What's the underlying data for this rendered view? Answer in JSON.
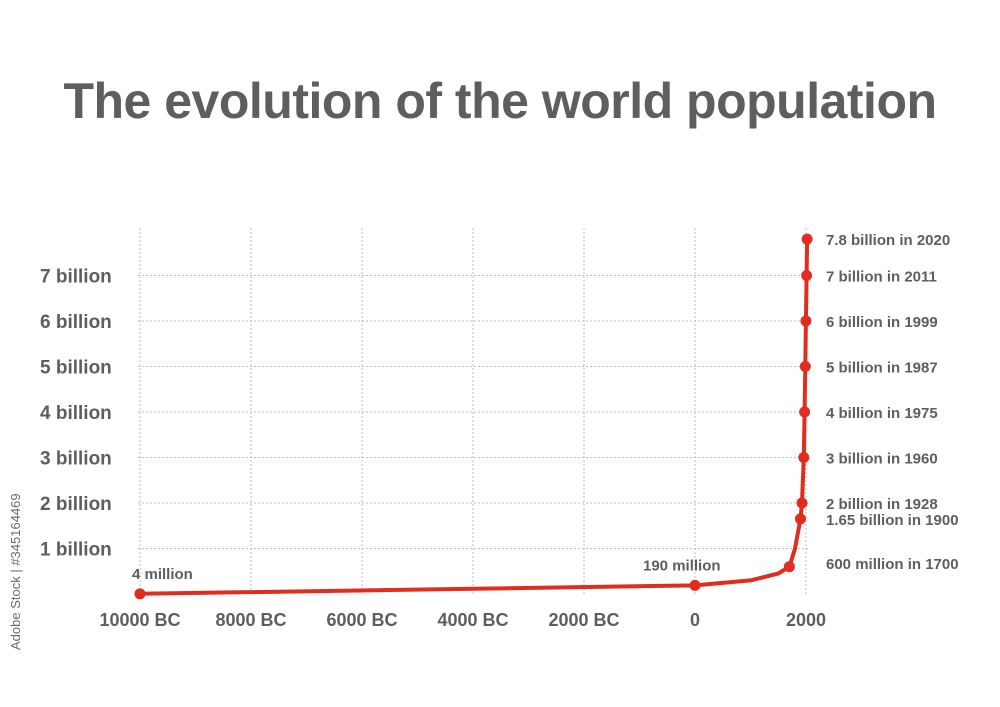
{
  "watermark": "Adobe Stock | #345164469",
  "colors": {
    "line": "#e02d1f",
    "text": "#5e5e5e",
    "grid": "#bdbdbd"
  },
  "chart_data": {
    "type": "line",
    "title": "The evolution of the world population",
    "xlabel": "",
    "ylabel": "",
    "xlim": [
      -10000,
      2000
    ],
    "ylim": [
      0,
      7.8
    ],
    "grid": true,
    "x_ticks": [
      {
        "value": -10000,
        "label": "10000 BC"
      },
      {
        "value": -8000,
        "label": "8000 BC"
      },
      {
        "value": -6000,
        "label": "6000 BC"
      },
      {
        "value": -4000,
        "label": "4000 BC"
      },
      {
        "value": -2000,
        "label": "2000 BC"
      },
      {
        "value": 0,
        "label": "0"
      },
      {
        "value": 2000,
        "label": "2000"
      }
    ],
    "y_ticks": [
      {
        "value": 1,
        "label": "1 billion"
      },
      {
        "value": 2,
        "label": "2 billion"
      },
      {
        "value": 3,
        "label": "3 billion"
      },
      {
        "value": 4,
        "label": "4 billion"
      },
      {
        "value": 5,
        "label": "5 billion"
      },
      {
        "value": 6,
        "label": "6 billion"
      },
      {
        "value": 7,
        "label": "7 billion"
      }
    ],
    "series": [
      {
        "values": [
          {
            "x": -10000,
            "y": 0.004
          },
          {
            "x": 0,
            "y": 0.19
          },
          {
            "x": 1000,
            "y": 0.3
          },
          {
            "x": 1500,
            "y": 0.45
          },
          {
            "x": 1700,
            "y": 0.6
          },
          {
            "x": 1800,
            "y": 0.99
          },
          {
            "x": 1900,
            "y": 1.65
          },
          {
            "x": 1928,
            "y": 2
          },
          {
            "x": 1960,
            "y": 3
          },
          {
            "x": 1975,
            "y": 4
          },
          {
            "x": 1987,
            "y": 5
          },
          {
            "x": 1999,
            "y": 6
          },
          {
            "x": 2011,
            "y": 7
          },
          {
            "x": 2020,
            "y": 7.8
          }
        ]
      }
    ],
    "markers": [
      {
        "x": -10000,
        "y": 0.004,
        "label": "4 million",
        "label_pos": "above"
      },
      {
        "x": 0,
        "y": 0.19,
        "label": "190 million",
        "label_pos": "above"
      },
      {
        "x": 1700,
        "y": 0.6,
        "label": "600 million in 1700",
        "label_pos": "right"
      },
      {
        "x": 1900,
        "y": 1.65,
        "label": "1.65 billion in 1900",
        "label_pos": "right"
      },
      {
        "x": 1928,
        "y": 2,
        "label": "2 billion in 1928",
        "label_pos": "right"
      },
      {
        "x": 1960,
        "y": 3,
        "label": "3 billion in 1960",
        "label_pos": "right"
      },
      {
        "x": 1975,
        "y": 4,
        "label": "4 billion in 1975",
        "label_pos": "right"
      },
      {
        "x": 1987,
        "y": 5,
        "label": "5 billion in 1987",
        "label_pos": "right"
      },
      {
        "x": 1999,
        "y": 6,
        "label": "6 billion in 1999",
        "label_pos": "right"
      },
      {
        "x": 2011,
        "y": 7,
        "label": "7 billion in 2011",
        "label_pos": "right"
      },
      {
        "x": 2020,
        "y": 7.8,
        "label": "7.8 billion in 2020",
        "label_pos": "right"
      }
    ]
  }
}
